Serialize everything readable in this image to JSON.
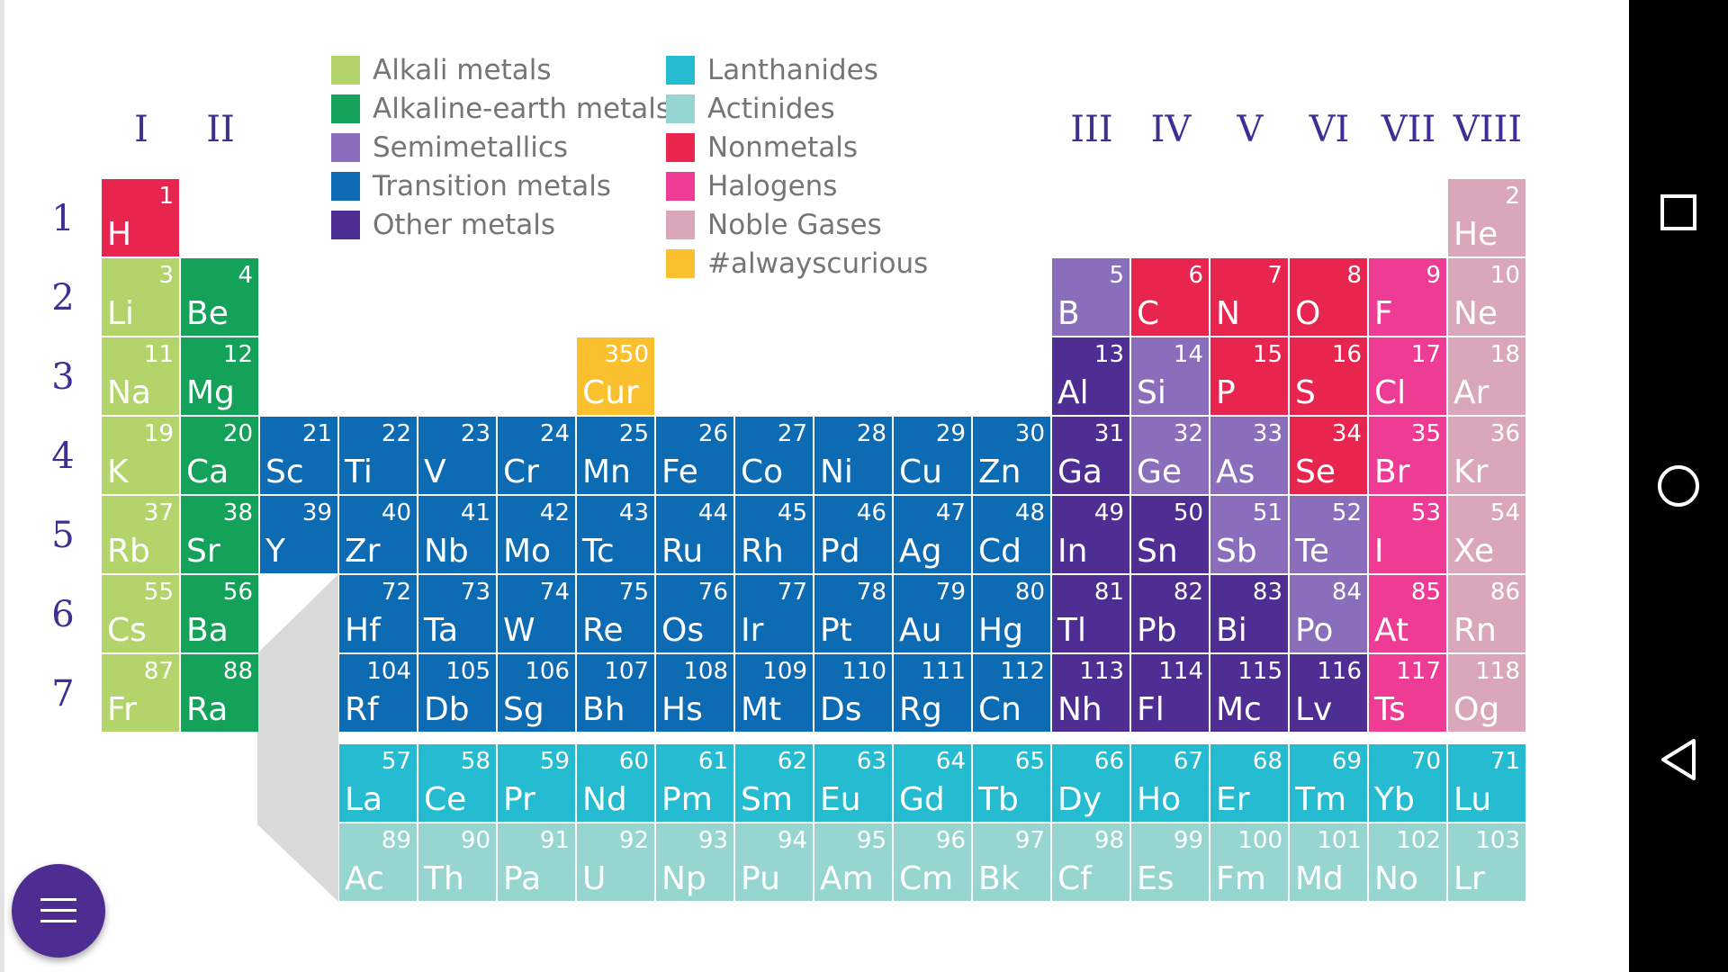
{
  "groups": [
    "I",
    "II",
    "III",
    "IV",
    "V",
    "VI",
    "VII",
    "VIII"
  ],
  "periods": [
    "1",
    "2",
    "3",
    "4",
    "5",
    "6",
    "7"
  ],
  "colors": {
    "alkali": "#b2d46a",
    "alkaline": "#14a15a",
    "semi": "#8a6ebc",
    "transition": "#0d6bb3",
    "other": "#4f2e93",
    "lanthanide": "#25bbd1",
    "actinide": "#97d6d0",
    "nonmetal": "#e8254f",
    "halogen": "#ee3b93",
    "noble": "#d9a7b9",
    "curious": "#fbc02d"
  },
  "legend": [
    {
      "label": "Alkali metals",
      "cat": "alkali"
    },
    {
      "label": "Alkaline-earth metals",
      "cat": "alkaline"
    },
    {
      "label": "Semimetallics",
      "cat": "semi"
    },
    {
      "label": "Transition metals",
      "cat": "transition"
    },
    {
      "label": "Other metals",
      "cat": "other"
    },
    {
      "label": "Lanthanides",
      "cat": "lanthanide"
    },
    {
      "label": "Actinides",
      "cat": "actinide"
    },
    {
      "label": "Nonmetals",
      "cat": "nonmetal"
    },
    {
      "label": "Halogens",
      "cat": "halogen"
    },
    {
      "label": "Noble Gases",
      "cat": "noble"
    },
    {
      "label": "#alwayscurious",
      "cat": "curious"
    }
  ],
  "elements": [
    {
      "n": "1",
      "s": "H",
      "c": "nonmetal",
      "r": 0,
      "col": 0
    },
    {
      "n": "2",
      "s": "He",
      "c": "noble",
      "r": 0,
      "col": 17
    },
    {
      "n": "3",
      "s": "Li",
      "c": "alkali",
      "r": 1,
      "col": 0
    },
    {
      "n": "4",
      "s": "Be",
      "c": "alkaline",
      "r": 1,
      "col": 1
    },
    {
      "n": "5",
      "s": "B",
      "c": "semi",
      "r": 1,
      "col": 12
    },
    {
      "n": "6",
      "s": "C",
      "c": "nonmetal",
      "r": 1,
      "col": 13
    },
    {
      "n": "7",
      "s": "N",
      "c": "nonmetal",
      "r": 1,
      "col": 14
    },
    {
      "n": "8",
      "s": "O",
      "c": "nonmetal",
      "r": 1,
      "col": 15
    },
    {
      "n": "9",
      "s": "F",
      "c": "halogen",
      "r": 1,
      "col": 16
    },
    {
      "n": "10",
      "s": "Ne",
      "c": "noble",
      "r": 1,
      "col": 17
    },
    {
      "n": "11",
      "s": "Na",
      "c": "alkali",
      "r": 2,
      "col": 0
    },
    {
      "n": "12",
      "s": "Mg",
      "c": "alkaline",
      "r": 2,
      "col": 1
    },
    {
      "n": "350",
      "s": "Cur",
      "c": "curious",
      "r": 2,
      "col": 6
    },
    {
      "n": "13",
      "s": "Al",
      "c": "other",
      "r": 2,
      "col": 12
    },
    {
      "n": "14",
      "s": "Si",
      "c": "semi",
      "r": 2,
      "col": 13
    },
    {
      "n": "15",
      "s": "P",
      "c": "nonmetal",
      "r": 2,
      "col": 14
    },
    {
      "n": "16",
      "s": "S",
      "c": "nonmetal",
      "r": 2,
      "col": 15
    },
    {
      "n": "17",
      "s": "Cl",
      "c": "halogen",
      "r": 2,
      "col": 16
    },
    {
      "n": "18",
      "s": "Ar",
      "c": "noble",
      "r": 2,
      "col": 17
    },
    {
      "n": "19",
      "s": "K",
      "c": "alkali",
      "r": 3,
      "col": 0
    },
    {
      "n": "20",
      "s": "Ca",
      "c": "alkaline",
      "r": 3,
      "col": 1
    },
    {
      "n": "21",
      "s": "Sc",
      "c": "transition",
      "r": 3,
      "col": 2
    },
    {
      "n": "22",
      "s": "Ti",
      "c": "transition",
      "r": 3,
      "col": 3
    },
    {
      "n": "23",
      "s": "V",
      "c": "transition",
      "r": 3,
      "col": 4
    },
    {
      "n": "24",
      "s": "Cr",
      "c": "transition",
      "r": 3,
      "col": 5
    },
    {
      "n": "25",
      "s": "Mn",
      "c": "transition",
      "r": 3,
      "col": 6
    },
    {
      "n": "26",
      "s": "Fe",
      "c": "transition",
      "r": 3,
      "col": 7
    },
    {
      "n": "27",
      "s": "Co",
      "c": "transition",
      "r": 3,
      "col": 8
    },
    {
      "n": "28",
      "s": "Ni",
      "c": "transition",
      "r": 3,
      "col": 9
    },
    {
      "n": "29",
      "s": "Cu",
      "c": "transition",
      "r": 3,
      "col": 10
    },
    {
      "n": "30",
      "s": "Zn",
      "c": "transition",
      "r": 3,
      "col": 11
    },
    {
      "n": "31",
      "s": "Ga",
      "c": "other",
      "r": 3,
      "col": 12
    },
    {
      "n": "32",
      "s": "Ge",
      "c": "semi",
      "r": 3,
      "col": 13
    },
    {
      "n": "33",
      "s": "As",
      "c": "semi",
      "r": 3,
      "col": 14
    },
    {
      "n": "34",
      "s": "Se",
      "c": "nonmetal",
      "r": 3,
      "col": 15
    },
    {
      "n": "35",
      "s": "Br",
      "c": "halogen",
      "r": 3,
      "col": 16
    },
    {
      "n": "36",
      "s": "Kr",
      "c": "noble",
      "r": 3,
      "col": 17
    },
    {
      "n": "37",
      "s": "Rb",
      "c": "alkali",
      "r": 4,
      "col": 0
    },
    {
      "n": "38",
      "s": "Sr",
      "c": "alkaline",
      "r": 4,
      "col": 1
    },
    {
      "n": "39",
      "s": "Y",
      "c": "transition",
      "r": 4,
      "col": 2
    },
    {
      "n": "40",
      "s": "Zr",
      "c": "transition",
      "r": 4,
      "col": 3
    },
    {
      "n": "41",
      "s": "Nb",
      "c": "transition",
      "r": 4,
      "col": 4
    },
    {
      "n": "42",
      "s": "Mo",
      "c": "transition",
      "r": 4,
      "col": 5
    },
    {
      "n": "43",
      "s": "Tc",
      "c": "transition",
      "r": 4,
      "col": 6
    },
    {
      "n": "44",
      "s": "Ru",
      "c": "transition",
      "r": 4,
      "col": 7
    },
    {
      "n": "45",
      "s": "Rh",
      "c": "transition",
      "r": 4,
      "col": 8
    },
    {
      "n": "46",
      "s": "Pd",
      "c": "transition",
      "r": 4,
      "col": 9
    },
    {
      "n": "47",
      "s": "Ag",
      "c": "transition",
      "r": 4,
      "col": 10
    },
    {
      "n": "48",
      "s": "Cd",
      "c": "transition",
      "r": 4,
      "col": 11
    },
    {
      "n": "49",
      "s": "In",
      "c": "other",
      "r": 4,
      "col": 12
    },
    {
      "n": "50",
      "s": "Sn",
      "c": "other",
      "r": 4,
      "col": 13
    },
    {
      "n": "51",
      "s": "Sb",
      "c": "semi",
      "r": 4,
      "col": 14
    },
    {
      "n": "52",
      "s": "Te",
      "c": "semi",
      "r": 4,
      "col": 15
    },
    {
      "n": "53",
      "s": "I",
      "c": "halogen",
      "r": 4,
      "col": 16
    },
    {
      "n": "54",
      "s": "Xe",
      "c": "noble",
      "r": 4,
      "col": 17
    },
    {
      "n": "55",
      "s": "Cs",
      "c": "alkali",
      "r": 5,
      "col": 0
    },
    {
      "n": "56",
      "s": "Ba",
      "c": "alkaline",
      "r": 5,
      "col": 1
    },
    {
      "n": "72",
      "s": "Hf",
      "c": "transition",
      "r": 5,
      "col": 3
    },
    {
      "n": "73",
      "s": "Ta",
      "c": "transition",
      "r": 5,
      "col": 4
    },
    {
      "n": "74",
      "s": "W",
      "c": "transition",
      "r": 5,
      "col": 5
    },
    {
      "n": "75",
      "s": "Re",
      "c": "transition",
      "r": 5,
      "col": 6
    },
    {
      "n": "76",
      "s": "Os",
      "c": "transition",
      "r": 5,
      "col": 7
    },
    {
      "n": "77",
      "s": "Ir",
      "c": "transition",
      "r": 5,
      "col": 8
    },
    {
      "n": "78",
      "s": "Pt",
      "c": "transition",
      "r": 5,
      "col": 9
    },
    {
      "n": "79",
      "s": "Au",
      "c": "transition",
      "r": 5,
      "col": 10
    },
    {
      "n": "80",
      "s": "Hg",
      "c": "transition",
      "r": 5,
      "col": 11
    },
    {
      "n": "81",
      "s": "Tl",
      "c": "other",
      "r": 5,
      "col": 12
    },
    {
      "n": "82",
      "s": "Pb",
      "c": "other",
      "r": 5,
      "col": 13
    },
    {
      "n": "83",
      "s": "Bi",
      "c": "other",
      "r": 5,
      "col": 14
    },
    {
      "n": "84",
      "s": "Po",
      "c": "semi",
      "r": 5,
      "col": 15
    },
    {
      "n": "85",
      "s": "At",
      "c": "halogen",
      "r": 5,
      "col": 16
    },
    {
      "n": "86",
      "s": "Rn",
      "c": "noble",
      "r": 5,
      "col": 17
    },
    {
      "n": "87",
      "s": "Fr",
      "c": "alkali",
      "r": 6,
      "col": 0
    },
    {
      "n": "88",
      "s": "Ra",
      "c": "alkaline",
      "r": 6,
      "col": 1
    },
    {
      "n": "104",
      "s": "Rf",
      "c": "transition",
      "r": 6,
      "col": 3
    },
    {
      "n": "105",
      "s": "Db",
      "c": "transition",
      "r": 6,
      "col": 4
    },
    {
      "n": "106",
      "s": "Sg",
      "c": "transition",
      "r": 6,
      "col": 5
    },
    {
      "n": "107",
      "s": "Bh",
      "c": "transition",
      "r": 6,
      "col": 6
    },
    {
      "n": "108",
      "s": "Hs",
      "c": "transition",
      "r": 6,
      "col": 7
    },
    {
      "n": "109",
      "s": "Mt",
      "c": "transition",
      "r": 6,
      "col": 8
    },
    {
      "n": "110",
      "s": "Ds",
      "c": "transition",
      "r": 6,
      "col": 9
    },
    {
      "n": "111",
      "s": "Rg",
      "c": "transition",
      "r": 6,
      "col": 10
    },
    {
      "n": "112",
      "s": "Cn",
      "c": "transition",
      "r": 6,
      "col": 11
    },
    {
      "n": "113",
      "s": "Nh",
      "c": "other",
      "r": 6,
      "col": 12
    },
    {
      "n": "114",
      "s": "Fl",
      "c": "other",
      "r": 6,
      "col": 13
    },
    {
      "n": "115",
      "s": "Mc",
      "c": "other",
      "r": 6,
      "col": 14
    },
    {
      "n": "116",
      "s": "Lv",
      "c": "other",
      "r": 6,
      "col": 15
    },
    {
      "n": "117",
      "s": "Ts",
      "c": "halogen",
      "r": 6,
      "col": 16
    },
    {
      "n": "118",
      "s": "Og",
      "c": "noble",
      "r": 6,
      "col": 17
    },
    {
      "n": "57",
      "s": "La",
      "c": "lanthanide",
      "r": 7,
      "col": 3
    },
    {
      "n": "58",
      "s": "Ce",
      "c": "lanthanide",
      "r": 7,
      "col": 4
    },
    {
      "n": "59",
      "s": "Pr",
      "c": "lanthanide",
      "r": 7,
      "col": 5
    },
    {
      "n": "60",
      "s": "Nd",
      "c": "lanthanide",
      "r": 7,
      "col": 6
    },
    {
      "n": "61",
      "s": "Pm",
      "c": "lanthanide",
      "r": 7,
      "col": 7
    },
    {
      "n": "62",
      "s": "Sm",
      "c": "lanthanide",
      "r": 7,
      "col": 8
    },
    {
      "n": "63",
      "s": "Eu",
      "c": "lanthanide",
      "r": 7,
      "col": 9
    },
    {
      "n": "64",
      "s": "Gd",
      "c": "lanthanide",
      "r": 7,
      "col": 10
    },
    {
      "n": "65",
      "s": "Tb",
      "c": "lanthanide",
      "r": 7,
      "col": 11
    },
    {
      "n": "66",
      "s": "Dy",
      "c": "lanthanide",
      "r": 7,
      "col": 12
    },
    {
      "n": "67",
      "s": "Ho",
      "c": "lanthanide",
      "r": 7,
      "col": 13
    },
    {
      "n": "68",
      "s": "Er",
      "c": "lanthanide",
      "r": 7,
      "col": 14
    },
    {
      "n": "69",
      "s": "Tm",
      "c": "lanthanide",
      "r": 7,
      "col": 15
    },
    {
      "n": "70",
      "s": "Yb",
      "c": "lanthanide",
      "r": 7,
      "col": 16
    },
    {
      "n": "71",
      "s": "Lu",
      "c": "lanthanide",
      "r": 7,
      "col": 17
    },
    {
      "n": "89",
      "s": "Ac",
      "c": "actinide",
      "r": 8,
      "col": 3
    },
    {
      "n": "90",
      "s": "Th",
      "c": "actinide",
      "r": 8,
      "col": 4
    },
    {
      "n": "91",
      "s": "Pa",
      "c": "actinide",
      "r": 8,
      "col": 5
    },
    {
      "n": "92",
      "s": "U",
      "c": "actinide",
      "r": 8,
      "col": 6
    },
    {
      "n": "93",
      "s": "Np",
      "c": "actinide",
      "r": 8,
      "col": 7
    },
    {
      "n": "94",
      "s": "Pu",
      "c": "actinide",
      "r": 8,
      "col": 8
    },
    {
      "n": "95",
      "s": "Am",
      "c": "actinide",
      "r": 8,
      "col": 9
    },
    {
      "n": "96",
      "s": "Cm",
      "c": "actinide",
      "r": 8,
      "col": 10
    },
    {
      "n": "97",
      "s": "Bk",
      "c": "actinide",
      "r": 8,
      "col": 11
    },
    {
      "n": "98",
      "s": "Cf",
      "c": "actinide",
      "r": 8,
      "col": 12
    },
    {
      "n": "99",
      "s": "Es",
      "c": "actinide",
      "r": 8,
      "col": 13
    },
    {
      "n": "100",
      "s": "Fm",
      "c": "actinide",
      "r": 8,
      "col": 14
    },
    {
      "n": "101",
      "s": "Md",
      "c": "actinide",
      "r": 8,
      "col": 15
    },
    {
      "n": "102",
      "s": "No",
      "c": "actinide",
      "r": 8,
      "col": 16
    },
    {
      "n": "103",
      "s": "Lr",
      "c": "actinide",
      "r": 8,
      "col": 17
    }
  ],
  "nav": {
    "recents_icon": "square-icon",
    "home_icon": "circle-icon",
    "back_icon": "triangle-back-icon"
  },
  "fab": {
    "icon": "hamburger-menu-icon"
  }
}
